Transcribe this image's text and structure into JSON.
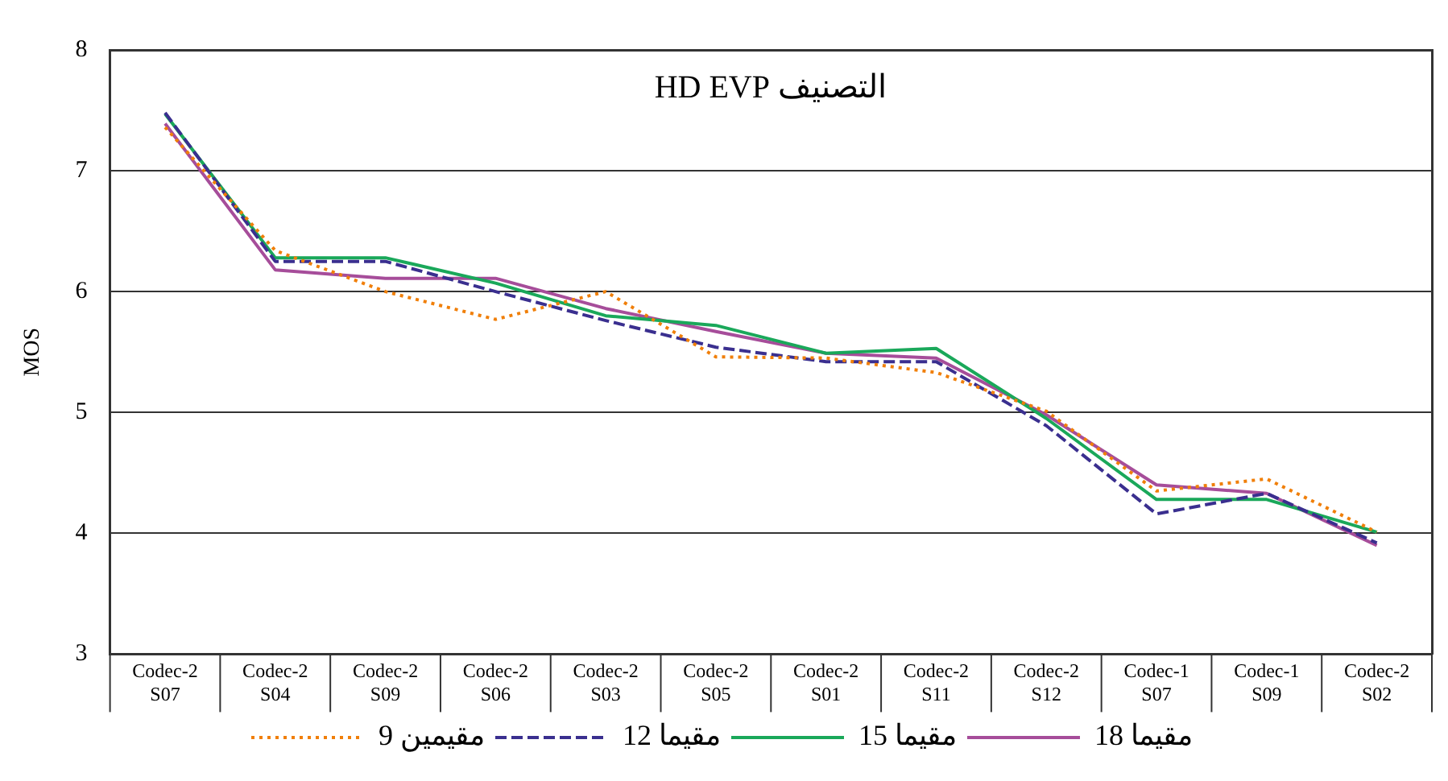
{
  "chart_data": {
    "type": "line",
    "title": "التصنيف HD EVP",
    "ylabel": "MOS",
    "categories": [
      "Codec-2 S07",
      "Codec-2 S04",
      "Codec-2 S09",
      "Codec-2 S06",
      "Codec-2 S03",
      "Codec-2 S05",
      "Codec-2 S01",
      "Codec-2 S11",
      "Codec-2 S12",
      "Codec-1 S07",
      "Codec-1 S09",
      "Codec-2 S02"
    ],
    "series": [
      {
        "name": "9 مقيمين",
        "color": "#f07f09",
        "line_style": "dotted",
        "values": [
          7.36,
          6.34,
          6.0,
          5.77,
          6.0,
          5.46,
          5.45,
          5.33,
          5.01,
          4.35,
          4.45,
          4.01
        ]
      },
      {
        "name": "12 مقيما",
        "color": "#3a2f8f",
        "line_style": "dashed",
        "values": [
          7.48,
          6.25,
          6.25,
          6.0,
          5.76,
          5.54,
          5.42,
          5.42,
          4.89,
          4.16,
          4.33,
          3.92
        ]
      },
      {
        "name": "15 مقيما",
        "color": "#1aa85a",
        "line_style": "solid",
        "values": [
          7.47,
          6.28,
          6.28,
          6.07,
          5.8,
          5.72,
          5.49,
          5.53,
          4.95,
          4.28,
          4.28,
          4.01
        ]
      },
      {
        "name": "18 مقيما",
        "color": "#a64d9a",
        "line_style": "solid",
        "values": [
          7.39,
          6.18,
          6.11,
          6.11,
          5.86,
          5.67,
          5.49,
          5.45,
          4.98,
          4.4,
          4.33,
          3.9
        ]
      }
    ],
    "ylim": [
      3,
      8
    ],
    "yticks": [
      3,
      4,
      5,
      6,
      7,
      8
    ],
    "grid": "y",
    "legend": "bottom",
    "marker": "none"
  }
}
